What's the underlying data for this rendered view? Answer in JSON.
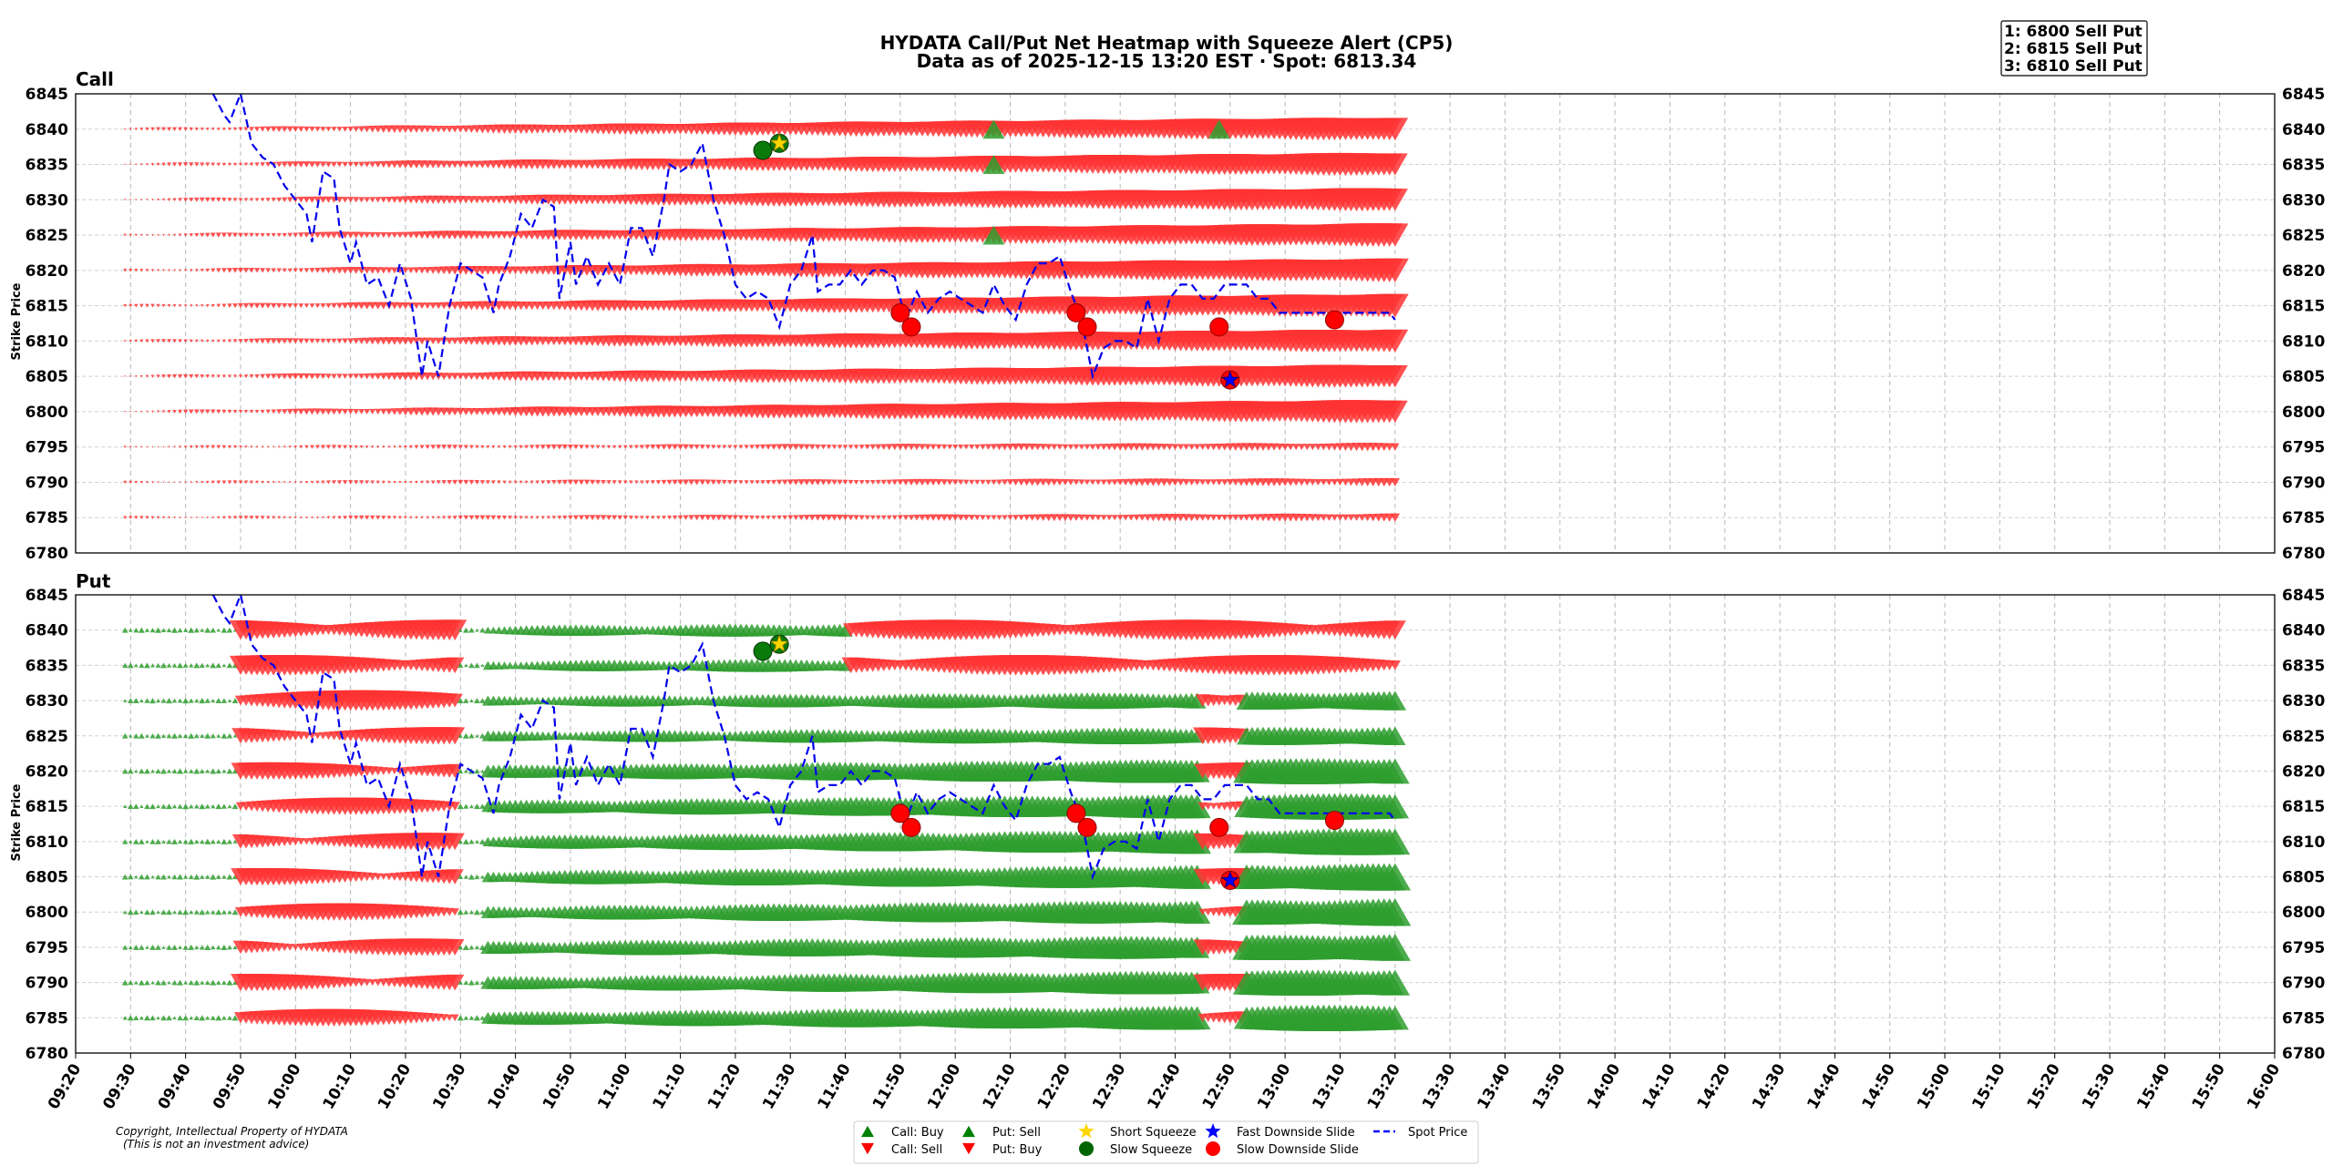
{
  "chart_data": {
    "type": "heatmap",
    "title": "HYDATA Call/Put Net Heatmap with Squeeze Alert (CP5)",
    "subtitle": "Data as of 2025-12-15 13:20 EST · Spot: 6813.34",
    "top_strikes": [
      "1: 6800 Sell Put",
      "2: 6815 Sell Put",
      "3: 6810 Sell Put"
    ],
    "ylabel": "Strike Price",
    "ylim": [
      6780,
      6845
    ],
    "y_ticks": [
      6780,
      6785,
      6790,
      6795,
      6800,
      6805,
      6810,
      6815,
      6820,
      6825,
      6830,
      6835,
      6840,
      6845
    ],
    "x_ticks": [
      "09:20",
      "09:30",
      "09:40",
      "09:50",
      "10:00",
      "10:10",
      "10:20",
      "10:30",
      "10:40",
      "10:50",
      "11:00",
      "11:10",
      "11:20",
      "11:30",
      "11:40",
      "11:50",
      "12:00",
      "12:10",
      "12:20",
      "12:30",
      "12:40",
      "12:50",
      "13:00",
      "13:10",
      "13:20",
      "13:30",
      "13:40",
      "13:50",
      "14:00",
      "14:10",
      "14:20",
      "14:30",
      "14:40",
      "14:50",
      "15:00",
      "15:10",
      "15:20",
      "15:30",
      "15:40",
      "15:50",
      "16:00"
    ],
    "xlim_minutes": [
      560,
      960
    ],
    "data_start_minute": 569,
    "data_end_minute": 800,
    "panels": [
      {
        "name": "Call",
        "strikes": [
          6785,
          6790,
          6795,
          6800,
          6805,
          6810,
          6815,
          6820,
          6825,
          6830,
          6835,
          6840
        ]
      },
      {
        "name": "Put",
        "strikes": [
          6785,
          6790,
          6795,
          6800,
          6805,
          6810,
          6815,
          6820,
          6825,
          6830,
          6835,
          6840
        ]
      }
    ],
    "spot_price": {
      "t": [
        585,
        587,
        588,
        590,
        592,
        594,
        596,
        598,
        600,
        602,
        603,
        605,
        607,
        608,
        610,
        611,
        613,
        615,
        617,
        619,
        621,
        623,
        624,
        626,
        628,
        630,
        632,
        634,
        636,
        637,
        639,
        641,
        643,
        645,
        647,
        648,
        650,
        651,
        653,
        655,
        657,
        659,
        661,
        663,
        665,
        667,
        668,
        670,
        672,
        674,
        676,
        678,
        680,
        682,
        684,
        686,
        688,
        690,
        692,
        694,
        695,
        697,
        699,
        701,
        703,
        705,
        707,
        709,
        711,
        713,
        715,
        717,
        719,
        721,
        723,
        725,
        727,
        729,
        731,
        733,
        735,
        737,
        739,
        741,
        743,
        745,
        747,
        749,
        751,
        753,
        755,
        757,
        759,
        761,
        763,
        765,
        767,
        769,
        771,
        773,
        775,
        777,
        779,
        781,
        783,
        785,
        787,
        789,
        791,
        793,
        795,
        797,
        799,
        800
      ],
      "v": [
        6845,
        6842,
        6841,
        6845,
        6838,
        6836,
        6835,
        6832,
        6830,
        6828,
        6824,
        6834,
        6833,
        6826,
        6821,
        6824,
        6818,
        6819,
        6815,
        6821,
        6816,
        6805,
        6810,
        6805,
        6815,
        6821,
        6820,
        6819,
        6814,
        6818,
        6822,
        6828,
        6826,
        6830,
        6829,
        6816,
        6824,
        6818,
        6822,
        6818,
        6821,
        6818,
        6826,
        6826,
        6822,
        6830,
        6835,
        6834,
        6835,
        6838,
        6830,
        6825,
        6818,
        6816,
        6817,
        6816,
        6812,
        6818,
        6820,
        6825,
        6817,
        6818,
        6818,
        6820,
        6818,
        6820,
        6820,
        6819,
        6813,
        6817,
        6814,
        6816,
        6817,
        6816,
        6815,
        6814,
        6818,
        6815,
        6813,
        6818,
        6821,
        6821,
        6822,
        6817,
        6813,
        6805,
        6809,
        6810,
        6810,
        6809,
        6816,
        6810,
        6816,
        6818,
        6818,
        6816,
        6816,
        6818,
        6818,
        6818,
        6816,
        6816,
        6814,
        6814,
        6814,
        6814,
        6814,
        6814,
        6814,
        6814,
        6814,
        6814,
        6814,
        6813
      ]
    },
    "short_squeeze": [
      {
        "t": 688,
        "v": 6838
      }
    ],
    "slow_squeeze": [
      {
        "t": 685,
        "v": 6837
      }
    ],
    "fast_downside_slide": [
      {
        "t": 770,
        "v": 6804.5
      }
    ],
    "slow_downside_slide": [
      {
        "t": 710,
        "v": 6814
      },
      {
        "t": 712,
        "v": 6812
      },
      {
        "t": 742,
        "v": 6814
      },
      {
        "t": 744,
        "v": 6812
      },
      {
        "t": 768,
        "v": 6812
      },
      {
        "t": 789,
        "v": 6813
      }
    ],
    "call_buy_highlights": [
      {
        "t": 727,
        "v": 6840
      },
      {
        "t": 727,
        "v": 6835
      },
      {
        "t": 727,
        "v": 6825
      },
      {
        "t": 768,
        "v": 6840
      }
    ],
    "legend": [
      {
        "label": "Call: Buy",
        "marker": "triangle-up",
        "color": "#008000"
      },
      {
        "label": "Call: Sell",
        "marker": "triangle-down",
        "color": "#ff0000"
      },
      {
        "label": "Put: Sell",
        "marker": "triangle-up",
        "color": "#008000"
      },
      {
        "label": "Put: Buy",
        "marker": "triangle-down",
        "color": "#ff0000"
      },
      {
        "label": "Short Squeeze",
        "marker": "star",
        "color": "#ffd700"
      },
      {
        "label": "Slow Squeeze",
        "marker": "circle",
        "color": "#006400"
      },
      {
        "label": "Fast Downside Slide",
        "marker": "star",
        "color": "#0000ff"
      },
      {
        "label": "Slow Downside Slide",
        "marker": "circle",
        "color": "#ff0000"
      },
      {
        "label": "Spot Price",
        "marker": "dashed-line",
        "color": "#0000ff"
      }
    ],
    "copyright": "Copyright, Intellectual Property of HYDATA",
    "disclaimer": "(This is not an investment advice)"
  }
}
